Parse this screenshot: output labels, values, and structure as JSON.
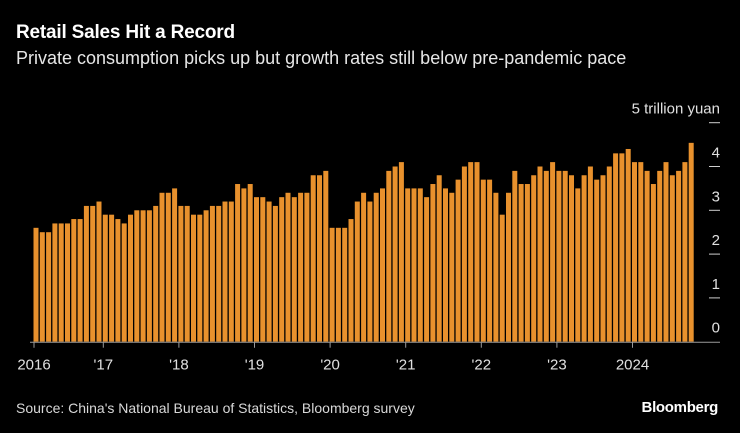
{
  "title": "Retail Sales Hit a Record",
  "subtitle": "Private consumption picks up but growth rates still below pre-pandemic pace",
  "source": "Source: China's National Bureau of Statistics, Bloomberg survey",
  "brand": "Bloomberg",
  "colors": {
    "bar": "#E8912D",
    "background": "#000000",
    "text": "#FFFFFF"
  },
  "chart_data": {
    "type": "bar",
    "title": "Retail Sales Hit a Record",
    "subtitle": "Private consumption picks up but growth rates still below pre-pandemic pace",
    "unit_label": "5 trillion yuan",
    "ylim": [
      0,
      5
    ],
    "yticks": [
      "0",
      "1",
      "2",
      "3",
      "4",
      "5 trillion yuan"
    ],
    "grid": false,
    "xticks": [
      {
        "label": "2016",
        "index": 0
      },
      {
        "label": "'17",
        "index": 11
      },
      {
        "label": "'18",
        "index": 23
      },
      {
        "label": "'19",
        "index": 35
      },
      {
        "label": "'20",
        "index": 47
      },
      {
        "label": "'21",
        "index": 59
      },
      {
        "label": "'22",
        "index": 71
      },
      {
        "label": "'23",
        "index": 83
      },
      {
        "label": "2024",
        "index": 95
      }
    ],
    "values": [
      2.6,
      2.5,
      2.5,
      2.7,
      2.7,
      2.7,
      2.8,
      2.8,
      3.1,
      3.1,
      3.2,
      2.9,
      2.9,
      2.8,
      2.7,
      2.9,
      3.0,
      3.0,
      3.0,
      3.1,
      3.4,
      3.4,
      3.5,
      3.1,
      3.1,
      2.9,
      2.9,
      3.0,
      3.1,
      3.1,
      3.2,
      3.2,
      3.6,
      3.5,
      3.6,
      3.3,
      3.3,
      3.2,
      3.1,
      3.3,
      3.4,
      3.3,
      3.4,
      3.4,
      3.8,
      3.8,
      3.9,
      2.6,
      2.6,
      2.6,
      2.8,
      3.2,
      3.4,
      3.2,
      3.4,
      3.5,
      3.9,
      4.0,
      4.1,
      3.5,
      3.5,
      3.5,
      3.3,
      3.6,
      3.8,
      3.5,
      3.4,
      3.7,
      4.0,
      4.1,
      4.1,
      3.7,
      3.7,
      3.4,
      2.9,
      3.4,
      3.9,
      3.6,
      3.6,
      3.8,
      4.0,
      3.9,
      4.1,
      3.9,
      3.9,
      3.8,
      3.5,
      3.8,
      4.0,
      3.7,
      3.8,
      4.0,
      4.3,
      4.3,
      4.4,
      4.1,
      4.1,
      3.9,
      3.6,
      3.9,
      4.1,
      3.8,
      3.9,
      4.1,
      4.54
    ]
  }
}
